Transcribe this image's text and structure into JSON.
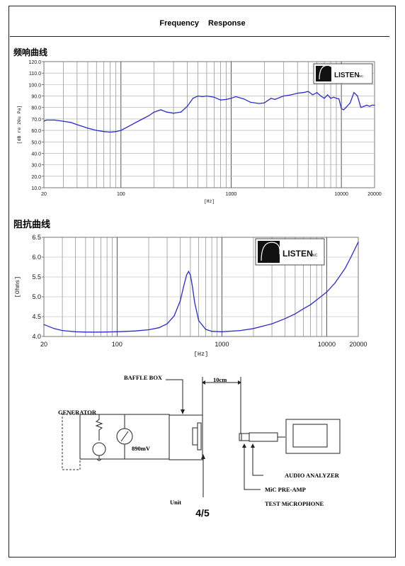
{
  "page": {
    "title": "Frequency    Response",
    "page_number": "4/5"
  },
  "sections": {
    "frequency_title": "频响曲线",
    "impedance_title": "阻抗曲线"
  },
  "logo": {
    "brand": "LISTEN",
    "suffix": "INC"
  },
  "chart_data": [
    {
      "type": "line",
      "name": "frequency-response",
      "xlabel": "[Hz]",
      "ylabel": "[dB re 20u Pa]",
      "xscale": "log",
      "xlim": [
        20,
        20000
      ],
      "ylim": [
        10,
        120
      ],
      "x_ticks": [
        "20",
        "100",
        "1000",
        "10000",
        "20000"
      ],
      "y_ticks": [
        "120.0",
        "110.0",
        "100.0",
        "90.0",
        "80.0",
        "70.0",
        "60.0",
        "50.0",
        "40.0",
        "30.0",
        "20.0",
        "10.0"
      ],
      "grid": true,
      "color": "#2a2ad0",
      "x": [
        20,
        21,
        25,
        30,
        35,
        40,
        50,
        60,
        70,
        80,
        90,
        100,
        120,
        150,
        180,
        200,
        230,
        260,
        300,
        350,
        400,
        450,
        500,
        550,
        600,
        700,
        800,
        900,
        1000,
        1100,
        1300,
        1500,
        1800,
        2000,
        2300,
        2500,
        2800,
        3000,
        3500,
        4000,
        4500,
        5000,
        5500,
        6000,
        6500,
        7000,
        7500,
        8000,
        8500,
        9000,
        9500,
        10000,
        10500,
        11000,
        12000,
        13000,
        14000,
        15000,
        16000,
        17000,
        18000,
        19000,
        20000
      ],
      "y": [
        68,
        69,
        69,
        68,
        67,
        65,
        62,
        60,
        59,
        58.5,
        59,
        60,
        64,
        69,
        73,
        76,
        78,
        76,
        75,
        76,
        81,
        88,
        90,
        89.5,
        90,
        89,
        86.5,
        87,
        88,
        89.5,
        87.5,
        84.5,
        83.5,
        84,
        88,
        87,
        89,
        90,
        91,
        92.5,
        93,
        94,
        91,
        93,
        90,
        88,
        91,
        88,
        89,
        88,
        87.5,
        79,
        78,
        80,
        84,
        93,
        90,
        80,
        81,
        82,
        81,
        82,
        82
      ]
    },
    {
      "type": "line",
      "name": "impedance",
      "xlabel": "[Hz]",
      "ylabel": "[Ohms]",
      "xscale": "log",
      "xlim": [
        20,
        20000
      ],
      "ylim": [
        4.0,
        6.5
      ],
      "x_ticks": [
        "20",
        "100",
        "1000",
        "10000",
        "20000"
      ],
      "y_ticks": [
        "6.5",
        "6.0",
        "5.5",
        "5.0",
        "4.5",
        "4.0"
      ],
      "grid": true,
      "color": "#2a2ad0",
      "x": [
        20,
        21,
        25,
        30,
        40,
        50,
        70,
        100,
        150,
        200,
        250,
        300,
        350,
        400,
        430,
        460,
        480,
        500,
        520,
        550,
        600,
        700,
        800,
        1000,
        1500,
        2000,
        3000,
        4000,
        5000,
        6000,
        7000,
        8000,
        10000,
        12000,
        15000,
        17000,
        20000
      ],
      "y": [
        4.3,
        4.28,
        4.2,
        4.15,
        4.12,
        4.11,
        4.11,
        4.12,
        4.14,
        4.17,
        4.22,
        4.32,
        4.52,
        4.9,
        5.25,
        5.55,
        5.64,
        5.55,
        5.3,
        4.85,
        4.4,
        4.18,
        4.13,
        4.12,
        4.15,
        4.2,
        4.32,
        4.45,
        4.57,
        4.7,
        4.8,
        4.92,
        5.12,
        5.35,
        5.72,
        6.0,
        6.38
      ]
    }
  ],
  "diagram": {
    "baffle_box": "BAFFLE BOX",
    "distance": "10cm",
    "generator": "GENERATOR",
    "voltage": "890mV",
    "unit": "Unit",
    "audio_analyzer": "AUDIO ANALYZER",
    "preamp": "MiC PRE-AMP",
    "test_mic": "TEST MiCROPHONE"
  }
}
